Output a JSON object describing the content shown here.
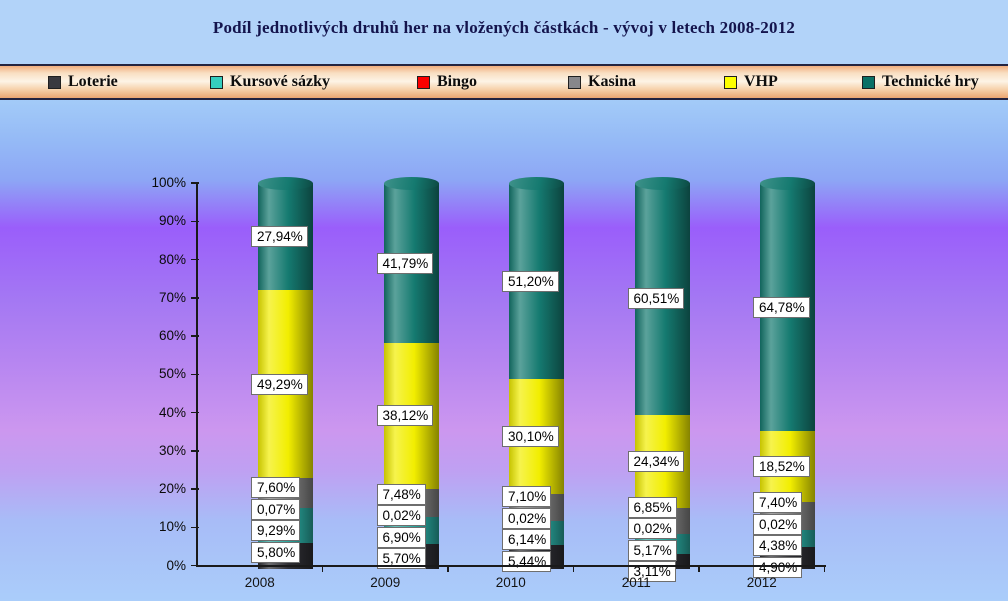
{
  "title": "Podíl jednotlivých druhů her na vložených částkách - vývoj v letech 2008-2012",
  "chart_data": {
    "type": "bar",
    "subtype": "stacked-cylinder-100pct",
    "unit": "%",
    "decimal_separator": ",",
    "categories": [
      "2008",
      "2009",
      "2010",
      "2011",
      "2012"
    ],
    "series": [
      {
        "id": "loterie",
        "name": "Loterie",
        "color": "#2e2e33",
        "values": [
          5.8,
          5.7,
          5.44,
          3.11,
          4.9
        ],
        "labels": [
          "5,80%",
          "5,70%",
          "5,44%",
          "3,11%",
          "4,90%"
        ]
      },
      {
        "id": "kursove-sazky",
        "name": "Kursové sázky",
        "color": "#2aa79e",
        "values": [
          9.29,
          6.9,
          6.14,
          5.17,
          4.38
        ],
        "labels": [
          "9,29%",
          "6,90%",
          "6,14%",
          "5,17%",
          "4,38%"
        ]
      },
      {
        "id": "bingo",
        "name": "Bingo",
        "color": "#fb0000",
        "values": [
          0.07,
          0.02,
          0.02,
          0.02,
          0.02
        ],
        "labels": [
          "0,07%",
          "0,02%",
          "0,02%",
          "0,02%",
          "0,02%"
        ]
      },
      {
        "id": "kasina",
        "name": "Kasina",
        "color": "#7f7f7f",
        "values": [
          7.6,
          7.48,
          7.1,
          6.85,
          7.4
        ],
        "labels": [
          "7,60%",
          "7,48%",
          "7,10%",
          "6,85%",
          "7,40%"
        ]
      },
      {
        "id": "vhp",
        "name": "VHP",
        "color": "#f2ee00",
        "values": [
          49.29,
          38.12,
          30.1,
          24.34,
          18.52
        ],
        "labels": [
          "49,29%",
          "38,12%",
          "30,10%",
          "24,34%",
          "18,52%"
        ]
      },
      {
        "id": "technicke-hry",
        "name": "Technické hry",
        "color": "#157a70",
        "values": [
          27.94,
          41.79,
          51.2,
          60.51,
          64.78
        ],
        "labels": [
          "27,94%",
          "41,79%",
          "51,20%",
          "60,51%",
          "64,78%"
        ]
      }
    ],
    "legend": [
      {
        "id": "loterie",
        "label": "Loterie",
        "color": "#39393f"
      },
      {
        "id": "kursove-sazky",
        "label": "Kursové sázky",
        "color": "#35cdbf"
      },
      {
        "id": "bingo",
        "label": "Bingo",
        "color": "#fb0000"
      },
      {
        "id": "kasina",
        "label": "Kasina",
        "color": "#87878b"
      },
      {
        "id": "vhp",
        "label": "VHP",
        "color": "#feff00"
      },
      {
        "id": "technicke-hry",
        "label": "Technické hry",
        "color": "#0a7066"
      }
    ],
    "y_axis": {
      "min": 0,
      "max": 100,
      "step": 10,
      "tick_labels": [
        "0%",
        "10%",
        "20%",
        "30%",
        "40%",
        "50%",
        "60%",
        "70%",
        "80%",
        "90%",
        "100%"
      ]
    },
    "legend_position": "top",
    "gridlines": false
  }
}
